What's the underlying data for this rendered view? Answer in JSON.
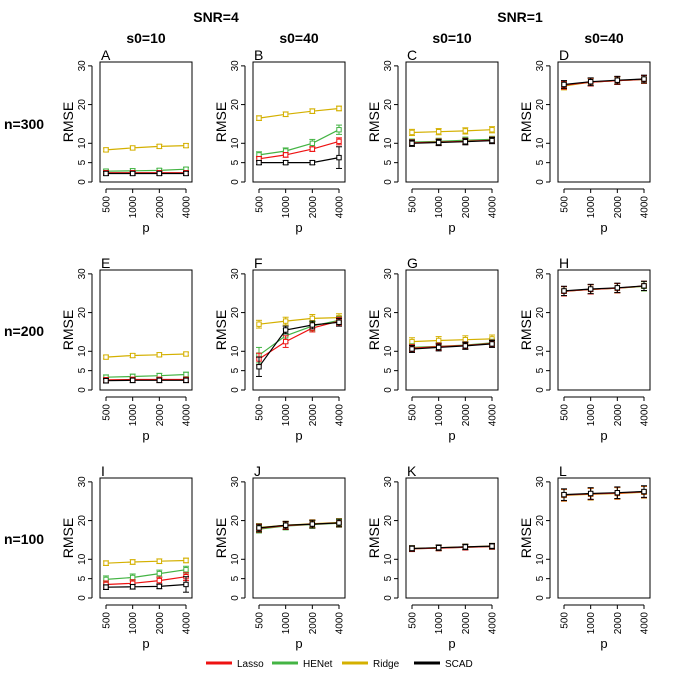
{
  "figure": {
    "group_titles": [
      "SNR=4",
      "SNR=1"
    ],
    "column_titles": [
      "s0=10",
      "s0=40",
      "s0=10",
      "s0=40"
    ],
    "row_titles": [
      "n=300",
      "n=200",
      "n=100"
    ],
    "xlabel": "p",
    "ylabel": "RMSE",
    "x_ticks": [
      500,
      1000,
      2000,
      4000
    ],
    "y_ticks": [
      0,
      5,
      10,
      20,
      30
    ],
    "legend": [
      {
        "name": "Lasso",
        "color": "#ee1111"
      },
      {
        "name": "HENet",
        "color": "#44b444"
      },
      {
        "name": "Ridge",
        "color": "#d4b000"
      },
      {
        "name": "SCAD",
        "color": "#000000"
      }
    ]
  },
  "chart_data": [
    {
      "panel": "A",
      "type": "line",
      "x": [
        500,
        1000,
        2000,
        4000
      ],
      "ylim": [
        0,
        31
      ],
      "series": [
        {
          "name": "Ridge",
          "values": [
            8.3,
            8.8,
            9.2,
            9.4
          ],
          "err": [
            0.5,
            0.5,
            0.5,
            0.5
          ]
        },
        {
          "name": "HENet",
          "values": [
            2.8,
            2.9,
            3.0,
            3.3
          ],
          "err": [
            0.5,
            0.5,
            0.5,
            0.5
          ]
        },
        {
          "name": "Lasso",
          "values": [
            2.4,
            2.4,
            2.4,
            2.4
          ],
          "err": [
            0.5,
            0.5,
            0.5,
            0.5
          ]
        },
        {
          "name": "SCAD",
          "values": [
            2.2,
            2.2,
            2.2,
            2.2
          ],
          "err": [
            0.5,
            0.5,
            0.5,
            0.5
          ]
        }
      ]
    },
    {
      "panel": "B",
      "type": "line",
      "x": [
        500,
        1000,
        2000,
        4000
      ],
      "ylim": [
        0,
        31
      ],
      "series": [
        {
          "name": "Ridge",
          "values": [
            16.5,
            17.5,
            18.3,
            19.0
          ],
          "err": [
            0.6,
            0.6,
            0.6,
            0.6
          ]
        },
        {
          "name": "HENet",
          "values": [
            7.0,
            8.0,
            10.0,
            13.5
          ],
          "err": [
            0.8,
            0.8,
            1.0,
            1.2
          ]
        },
        {
          "name": "Lasso",
          "values": [
            6.0,
            7.0,
            8.5,
            10.5
          ],
          "err": [
            0.6,
            0.6,
            0.6,
            0.9
          ]
        },
        {
          "name": "SCAD",
          "values": [
            5.0,
            5.0,
            5.0,
            6.3
          ],
          "err": [
            0.5,
            0.5,
            0.5,
            2.8
          ]
        }
      ]
    },
    {
      "panel": "C",
      "type": "line",
      "x": [
        500,
        1000,
        2000,
        4000
      ],
      "ylim": [
        0,
        31
      ],
      "series": [
        {
          "name": "Ridge",
          "values": [
            12.8,
            13.0,
            13.2,
            13.5
          ],
          "err": [
            0.8,
            0.8,
            0.8,
            0.8
          ]
        },
        {
          "name": "HENet",
          "values": [
            10.3,
            10.5,
            10.8,
            11.0
          ],
          "err": [
            0.8,
            0.8,
            0.8,
            0.8
          ]
        },
        {
          "name": "Lasso",
          "values": [
            10.1,
            10.3,
            10.5,
            10.8
          ],
          "err": [
            0.8,
            0.8,
            0.8,
            0.8
          ]
        },
        {
          "name": "SCAD",
          "values": [
            10.0,
            10.2,
            10.4,
            10.7
          ],
          "err": [
            0.8,
            0.8,
            0.8,
            0.8
          ]
        }
      ]
    },
    {
      "panel": "D",
      "type": "line",
      "x": [
        500,
        1000,
        2000,
        4000
      ],
      "ylim": [
        0,
        31
      ],
      "series": [
        {
          "name": "Ridge",
          "values": [
            24.8,
            25.8,
            26.2,
            26.5
          ],
          "err": [
            1.0,
            1.0,
            1.0,
            1.0
          ]
        },
        {
          "name": "HENet",
          "values": [
            25.0,
            25.8,
            26.2,
            26.5
          ],
          "err": [
            1.0,
            1.0,
            1.0,
            1.0
          ]
        },
        {
          "name": "Lasso",
          "values": [
            25.0,
            25.8,
            26.2,
            26.5
          ],
          "err": [
            1.0,
            1.0,
            1.0,
            1.0
          ]
        },
        {
          "name": "SCAD",
          "values": [
            25.2,
            25.9,
            26.3,
            26.6
          ],
          "err": [
            1.0,
            1.0,
            1.0,
            1.0
          ]
        }
      ]
    },
    {
      "panel": "E",
      "type": "line",
      "x": [
        500,
        1000,
        2000,
        4000
      ],
      "ylim": [
        0,
        31
      ],
      "series": [
        {
          "name": "Ridge",
          "values": [
            8.5,
            8.9,
            9.1,
            9.3
          ],
          "err": [
            0.5,
            0.5,
            0.5,
            0.5
          ]
        },
        {
          "name": "HENet",
          "values": [
            3.3,
            3.5,
            3.7,
            4.0
          ],
          "err": [
            0.6,
            0.6,
            0.6,
            0.6
          ]
        },
        {
          "name": "Lasso",
          "values": [
            2.6,
            2.7,
            2.7,
            2.7
          ],
          "err": [
            0.6,
            0.6,
            0.6,
            0.6
          ]
        },
        {
          "name": "SCAD",
          "values": [
            2.4,
            2.5,
            2.5,
            2.5
          ],
          "err": [
            0.6,
            0.6,
            0.6,
            0.6
          ]
        }
      ]
    },
    {
      "panel": "F",
      "type": "line",
      "x": [
        500,
        1000,
        2000,
        4000
      ],
      "ylim": [
        0,
        31
      ],
      "series": [
        {
          "name": "Ridge",
          "values": [
            17.0,
            17.8,
            18.5,
            18.7
          ],
          "err": [
            1.0,
            1.0,
            1.0,
            1.0
          ]
        },
        {
          "name": "HENet",
          "values": [
            9.0,
            14.0,
            16.5,
            18.0
          ],
          "err": [
            2.0,
            1.8,
            1.2,
            1.0
          ]
        },
        {
          "name": "Lasso",
          "values": [
            8.0,
            12.5,
            16.0,
            17.8
          ],
          "err": [
            1.5,
            1.5,
            1.0,
            1.0
          ]
        },
        {
          "name": "SCAD",
          "values": [
            6.0,
            15.5,
            16.8,
            17.5
          ],
          "err": [
            2.5,
            1.0,
            1.0,
            1.0
          ]
        }
      ]
    },
    {
      "panel": "G",
      "type": "line",
      "x": [
        500,
        1000,
        2000,
        4000
      ],
      "ylim": [
        0,
        31
      ],
      "series": [
        {
          "name": "Ridge",
          "values": [
            12.5,
            12.8,
            13.0,
            13.2
          ],
          "err": [
            1.0,
            1.0,
            1.0,
            1.0
          ]
        },
        {
          "name": "HENet",
          "values": [
            11.0,
            11.3,
            11.6,
            12.2
          ],
          "err": [
            0.9,
            0.9,
            0.9,
            0.9
          ]
        },
        {
          "name": "Lasso",
          "values": [
            10.8,
            11.2,
            11.5,
            12.0
          ],
          "err": [
            0.9,
            0.9,
            0.9,
            0.9
          ]
        },
        {
          "name": "SCAD",
          "values": [
            10.6,
            11.0,
            11.4,
            11.9
          ],
          "err": [
            0.9,
            0.9,
            0.9,
            0.9
          ]
        }
      ]
    },
    {
      "panel": "H",
      "type": "line",
      "x": [
        500,
        1000,
        2000,
        4000
      ],
      "ylim": [
        0,
        31
      ],
      "series": [
        {
          "name": "Ridge",
          "values": [
            25.5,
            26.0,
            26.3,
            26.8
          ],
          "err": [
            1.2,
            1.2,
            1.2,
            1.2
          ]
        },
        {
          "name": "HENet",
          "values": [
            25.5,
            26.0,
            26.3,
            26.8
          ],
          "err": [
            1.2,
            1.2,
            1.2,
            1.2
          ]
        },
        {
          "name": "Lasso",
          "values": [
            25.5,
            26.0,
            26.3,
            26.9
          ],
          "err": [
            1.2,
            1.2,
            1.2,
            1.2
          ]
        },
        {
          "name": "SCAD",
          "values": [
            25.6,
            26.1,
            26.4,
            26.9
          ],
          "err": [
            1.2,
            1.2,
            1.2,
            1.2
          ]
        }
      ]
    },
    {
      "panel": "I",
      "type": "line",
      "x": [
        500,
        1000,
        2000,
        4000
      ],
      "ylim": [
        0,
        31
      ],
      "series": [
        {
          "name": "Ridge",
          "values": [
            9.0,
            9.3,
            9.5,
            9.7
          ],
          "err": [
            0.6,
            0.6,
            0.6,
            0.6
          ]
        },
        {
          "name": "HENet",
          "values": [
            4.8,
            5.3,
            6.3,
            7.3
          ],
          "err": [
            0.9,
            0.9,
            0.9,
            0.9
          ]
        },
        {
          "name": "Lasso",
          "values": [
            3.5,
            3.8,
            4.5,
            5.5
          ],
          "err": [
            0.9,
            0.9,
            0.9,
            1.0
          ]
        },
        {
          "name": "SCAD",
          "values": [
            2.8,
            2.9,
            3.0,
            3.5
          ],
          "err": [
            0.6,
            0.6,
            0.6,
            2.0
          ]
        }
      ]
    },
    {
      "panel": "J",
      "type": "line",
      "x": [
        500,
        1000,
        2000,
        4000
      ],
      "ylim": [
        0,
        31
      ],
      "series": [
        {
          "name": "Ridge",
          "values": [
            18.2,
            18.8,
            19.2,
            19.5
          ],
          "err": [
            1.0,
            1.0,
            1.0,
            1.0
          ]
        },
        {
          "name": "HENet",
          "values": [
            17.8,
            18.6,
            19.0,
            19.3
          ],
          "err": [
            1.0,
            1.0,
            1.0,
            1.0
          ]
        },
        {
          "name": "Lasso",
          "values": [
            18.0,
            18.7,
            19.1,
            19.4
          ],
          "err": [
            1.0,
            1.0,
            1.0,
            1.0
          ]
        },
        {
          "name": "SCAD",
          "values": [
            18.1,
            18.8,
            19.1,
            19.4
          ],
          "err": [
            1.0,
            1.0,
            1.0,
            1.0
          ]
        }
      ]
    },
    {
      "panel": "K",
      "type": "line",
      "x": [
        500,
        1000,
        2000,
        4000
      ],
      "ylim": [
        0,
        31
      ],
      "series": [
        {
          "name": "Ridge",
          "values": [
            12.8,
            13.0,
            13.2,
            13.4
          ],
          "err": [
            0.7,
            0.7,
            0.7,
            0.7
          ]
        },
        {
          "name": "HENet",
          "values": [
            12.7,
            12.9,
            13.1,
            13.3
          ],
          "err": [
            0.7,
            0.7,
            0.7,
            0.7
          ]
        },
        {
          "name": "Lasso",
          "values": [
            12.7,
            12.9,
            13.1,
            13.3
          ],
          "err": [
            0.7,
            0.7,
            0.7,
            0.7
          ]
        },
        {
          "name": "SCAD",
          "values": [
            12.8,
            13.0,
            13.2,
            13.4
          ],
          "err": [
            0.7,
            0.7,
            0.7,
            0.7
          ]
        }
      ]
    },
    {
      "panel": "L",
      "type": "line",
      "x": [
        500,
        1000,
        2000,
        4000
      ],
      "ylim": [
        0,
        31
      ],
      "series": [
        {
          "name": "Ridge",
          "values": [
            26.5,
            26.8,
            27.0,
            27.3
          ],
          "err": [
            1.5,
            1.5,
            1.5,
            1.5
          ]
        },
        {
          "name": "HENet",
          "values": [
            26.6,
            26.9,
            27.1,
            27.4
          ],
          "err": [
            1.5,
            1.5,
            1.5,
            1.5
          ]
        },
        {
          "name": "Lasso",
          "values": [
            26.6,
            26.9,
            27.1,
            27.4
          ],
          "err": [
            1.5,
            1.5,
            1.5,
            1.5
          ]
        },
        {
          "name": "SCAD",
          "values": [
            26.7,
            27.0,
            27.2,
            27.5
          ],
          "err": [
            1.5,
            1.5,
            1.5,
            1.5
          ]
        }
      ]
    }
  ]
}
